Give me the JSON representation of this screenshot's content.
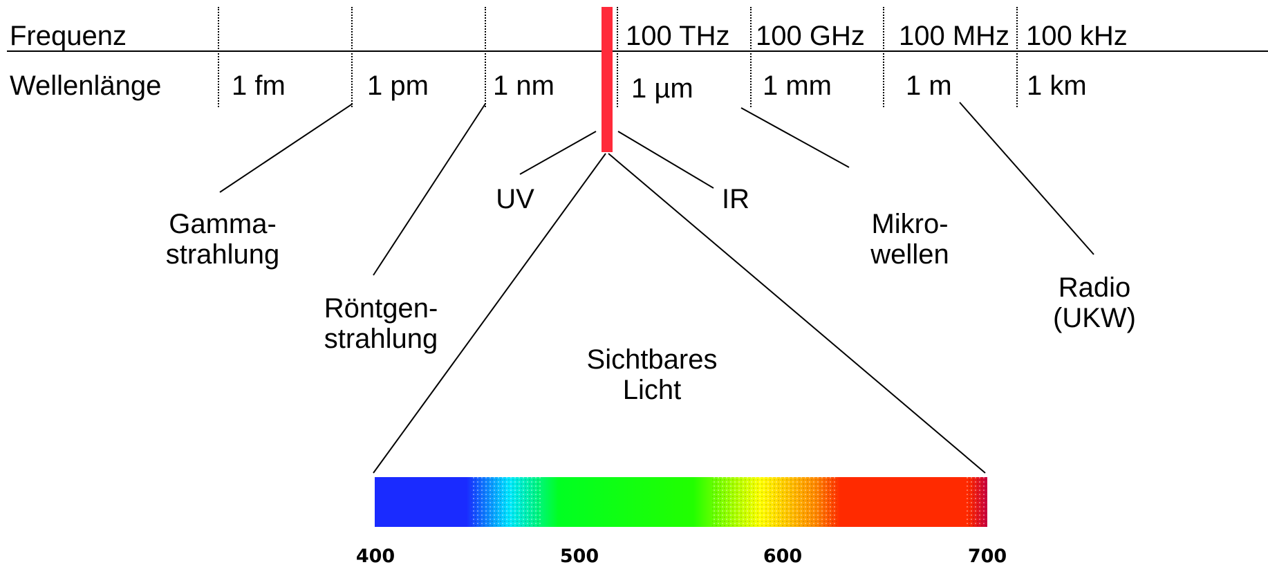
{
  "row_labels": {
    "frequency": "Frequenz",
    "wavelength": "Wellenlänge"
  },
  "frequencies": [
    "100 THz",
    "100 GHz",
    "100 MHz",
    "100 kHz"
  ],
  "wavelengths": [
    "1 fm",
    "1 pm",
    "1 nm",
    "1 µm",
    "1 mm",
    "1 m",
    "1 km"
  ],
  "regions": {
    "gamma": [
      "Gamma-",
      "strahlung"
    ],
    "xray": [
      "Röntgen-",
      "strahlung"
    ],
    "uv": "UV",
    "ir": "IR",
    "microwave": [
      "Mikro-",
      "wellen"
    ],
    "radio": [
      "Radio",
      "(UKW)"
    ],
    "visible": [
      "Sichtbares",
      "Licht"
    ]
  },
  "spectrum_ticks": [
    "400",
    "500",
    "600",
    "700"
  ],
  "colors": {
    "visible_band": "#ff2a3a",
    "lines": "#000000"
  }
}
